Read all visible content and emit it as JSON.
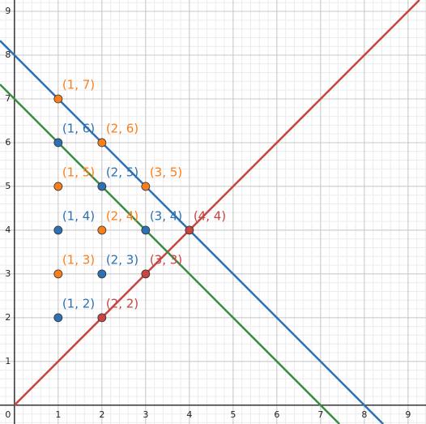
{
  "chart_data": {
    "type": "scatter",
    "xlim": [
      -0.33,
      9.41
    ],
    "ylim": [
      -0.43,
      9.26
    ],
    "xticks": [
      0,
      1,
      2,
      3,
      4,
      5,
      6,
      7,
      8,
      9
    ],
    "yticks": [
      1,
      2,
      3,
      4,
      5,
      6,
      7,
      8,
      9
    ],
    "grid": true,
    "lines": [
      {
        "color": "#c74440",
        "x": [
          0,
          9.26
        ],
        "values": [
          0,
          9.26
        ]
      },
      {
        "color": "#2d70b3",
        "x": [
          -0.33,
          8.43
        ],
        "values": [
          8.33,
          -0.43
        ]
      },
      {
        "color": "#388c46",
        "x": [
          -0.33,
          7.43
        ],
        "values": [
          7.33,
          -0.43
        ]
      }
    ],
    "series": [
      {
        "color": "#fa7e19",
        "x": [
          1,
          2,
          1,
          3,
          2,
          1
        ],
        "values": [
          7,
          6,
          5,
          5,
          4,
          3
        ],
        "value_labels": [
          "(1, 7)",
          "(2, 6)",
          "(1, 5)",
          "(3, 5)",
          "(2, 4)",
          "(1, 3)"
        ]
      },
      {
        "color": "#2d70b3",
        "x": [
          1,
          2,
          1,
          3,
          2,
          1
        ],
        "values": [
          6,
          5,
          4,
          4,
          3,
          2
        ],
        "value_labels": [
          "(1, 6)",
          "(2, 5)",
          "(1, 4)",
          "(3, 4)",
          "(2, 3)",
          "(1, 2)"
        ]
      },
      {
        "color": "#c74440",
        "x": [
          4,
          3,
          2
        ],
        "values": [
          4,
          3,
          2
        ],
        "value_labels": [
          "(4, 4)",
          "(3, 3)",
          "(2, 2)"
        ]
      }
    ]
  }
}
